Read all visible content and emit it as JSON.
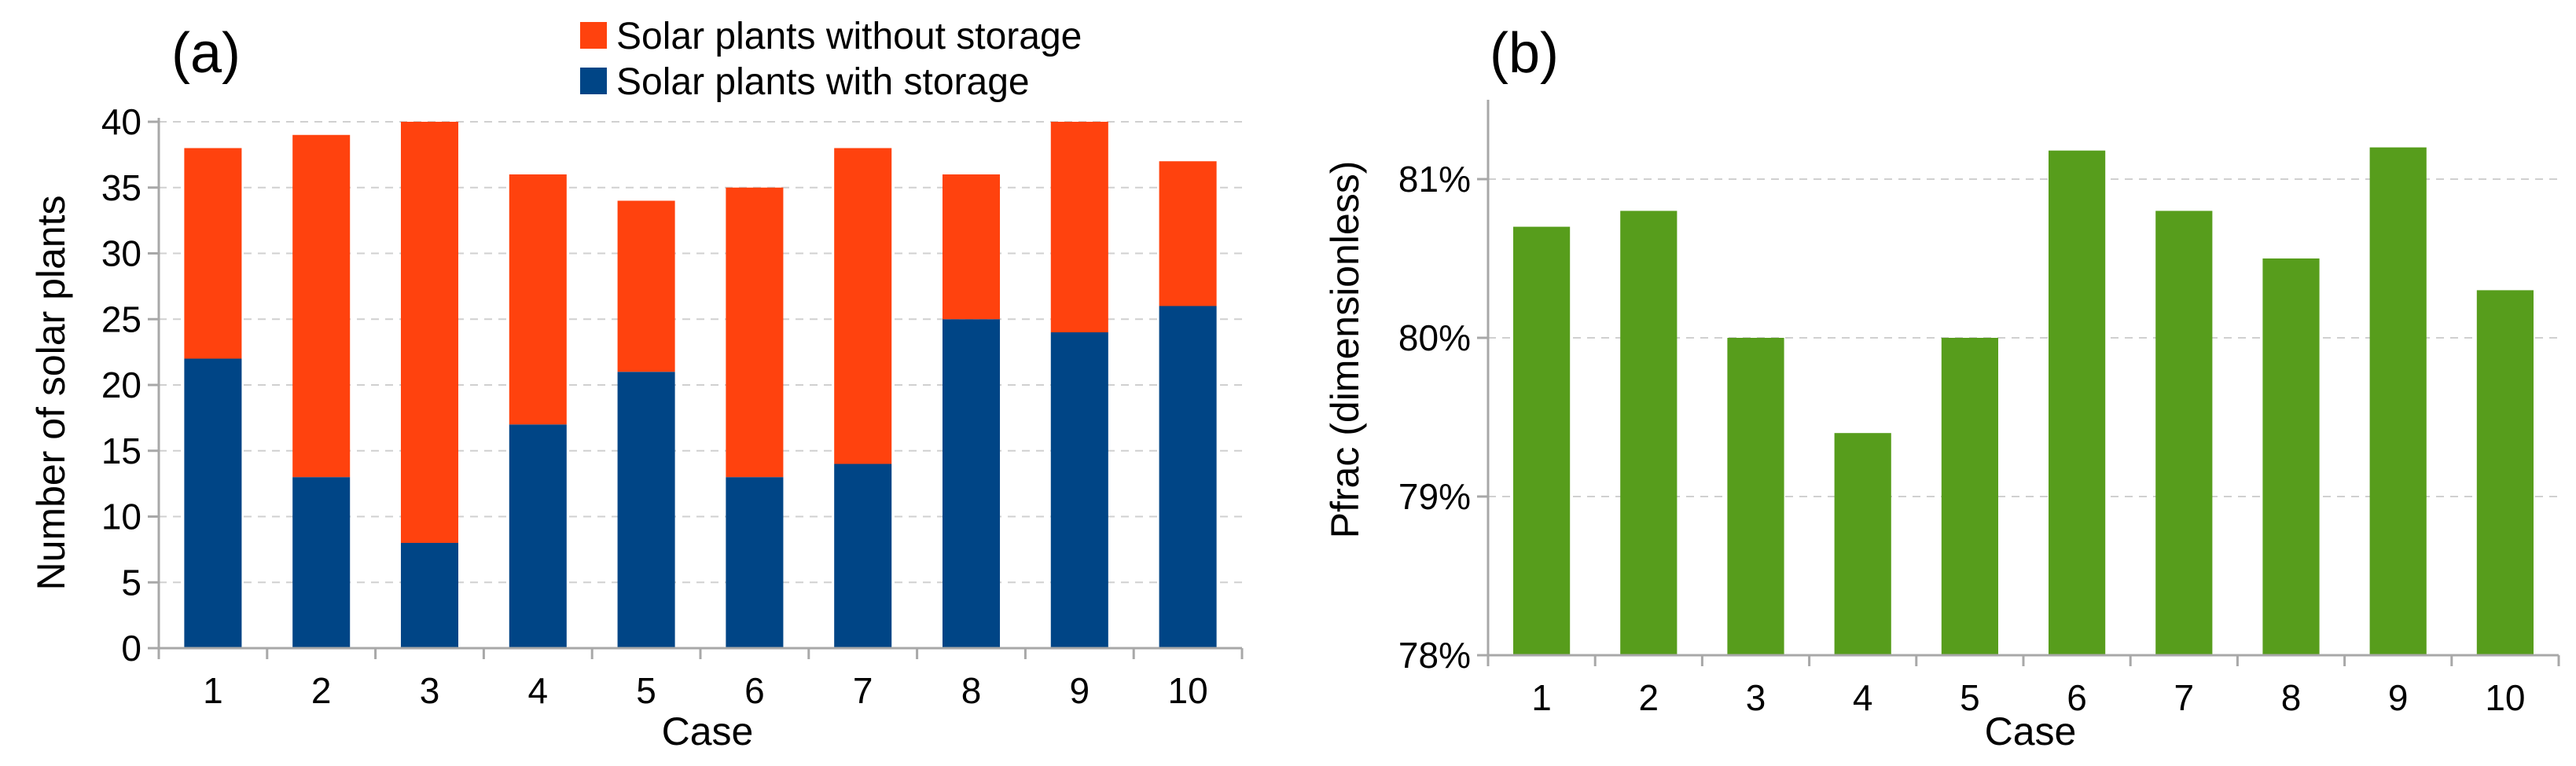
{
  "chart_data": [
    {
      "type": "bar",
      "stacked": true,
      "panel_label": "(a)",
      "title": "",
      "xlabel": "Case",
      "ylabel": "Number of solar plants",
      "categories": [
        "1",
        "2",
        "3",
        "4",
        "5",
        "6",
        "7",
        "8",
        "9",
        "10"
      ],
      "ylim": [
        0,
        40
      ],
      "yticks": [
        "0",
        "5",
        "10",
        "15",
        "20",
        "25",
        "30",
        "35",
        "40"
      ],
      "grid": true,
      "legend_position": "top-center",
      "series": [
        {
          "name": "Solar plants with storage",
          "color": "#004586",
          "values": [
            22,
            13,
            8,
            17,
            21,
            13,
            14,
            25,
            24,
            26
          ]
        },
        {
          "name": "Solar plants without storage",
          "color": "#ff420e",
          "values": [
            16,
            26,
            32,
            19,
            13,
            22,
            24,
            11,
            16,
            11
          ]
        }
      ],
      "legend_order": [
        "Solar plants without storage",
        "Solar plants with storage"
      ]
    },
    {
      "type": "bar",
      "panel_label": "(b)",
      "title": "",
      "xlabel": "Case",
      "ylabel": "Pfrac (dimensionless)",
      "categories": [
        "1",
        "2",
        "3",
        "4",
        "5",
        "6",
        "7",
        "8",
        "9",
        "10"
      ],
      "ylim": [
        78,
        81.5
      ],
      "yticks": [
        "78%",
        "79%",
        "80%",
        "81%"
      ],
      "grid": true,
      "series": [
        {
          "name": "Pfrac",
          "color": "#579d1c",
          "values": [
            80.7,
            80.8,
            80.0,
            79.4,
            80.0,
            81.18,
            80.8,
            80.5,
            81.2,
            80.3
          ]
        }
      ]
    }
  ]
}
